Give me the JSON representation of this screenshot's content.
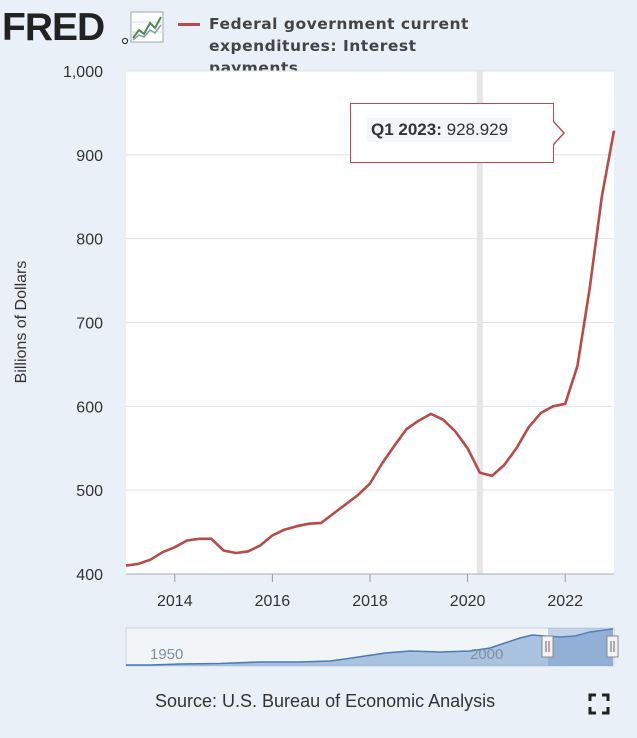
{
  "header": {
    "logo_text": "FRED",
    "legend_text_lines": [
      "Federal government current",
      "expenditures: Interest",
      "payments"
    ],
    "series_color": "#b84a48"
  },
  "tooltip": {
    "label": "Q1 2023:",
    "value": "928.929"
  },
  "navigator": {
    "labels": [
      "1950",
      "2000"
    ]
  },
  "footer": {
    "source": "Source: U.S. Bureau of Economic Analysis"
  },
  "icons": {
    "fullscreen": "fullscreen-icon",
    "logo_graph": "fred-graph-icon"
  },
  "chart_data": {
    "type": "line",
    "title": "",
    "xlabel": "",
    "ylabel": "Billions of Dollars",
    "ylim": [
      400,
      1000
    ],
    "yticks": [
      400,
      500,
      600,
      700,
      800,
      900,
      1000
    ],
    "ytick_labels": [
      "400",
      "500",
      "600",
      "700",
      "800",
      "900",
      "1,000"
    ],
    "xlim": [
      2013.0,
      2023.0
    ],
    "xticks": [
      2014,
      2016,
      2018,
      2020,
      2022
    ],
    "grid": true,
    "legend": "top",
    "recession_shading": [
      2020.25
    ],
    "series": [
      {
        "name": "Federal government current expenditures: Interest payments",
        "color": "#b84a48",
        "x": [
          "2013 Q1",
          "2013 Q2",
          "2013 Q3",
          "2013 Q4",
          "2014 Q1",
          "2014 Q2",
          "2014 Q3",
          "2014 Q4",
          "2015 Q1",
          "2015 Q2",
          "2015 Q3",
          "2015 Q4",
          "2016 Q1",
          "2016 Q2",
          "2016 Q3",
          "2016 Q4",
          "2017 Q1",
          "2017 Q2",
          "2017 Q3",
          "2017 Q4",
          "2018 Q1",
          "2018 Q2",
          "2018 Q3",
          "2018 Q4",
          "2019 Q1",
          "2019 Q2",
          "2019 Q3",
          "2019 Q4",
          "2020 Q1",
          "2020 Q2",
          "2020 Q3",
          "2020 Q4",
          "2021 Q1",
          "2021 Q2",
          "2021 Q3",
          "2021 Q4",
          "2022 Q1",
          "2022 Q2",
          "2022 Q3",
          "2022 Q4",
          "2023 Q1"
        ],
        "values": [
          410,
          412,
          417,
          426,
          432,
          440,
          442,
          442,
          428,
          425,
          427,
          434,
          446,
          453,
          457,
          460,
          461,
          472,
          483,
          494,
          508,
          532,
          553,
          573,
          583,
          591,
          584,
          570,
          550,
          521,
          517,
          530,
          550,
          575,
          592,
          600,
          603,
          648,
          740,
          850,
          928.929
        ]
      }
    ]
  }
}
